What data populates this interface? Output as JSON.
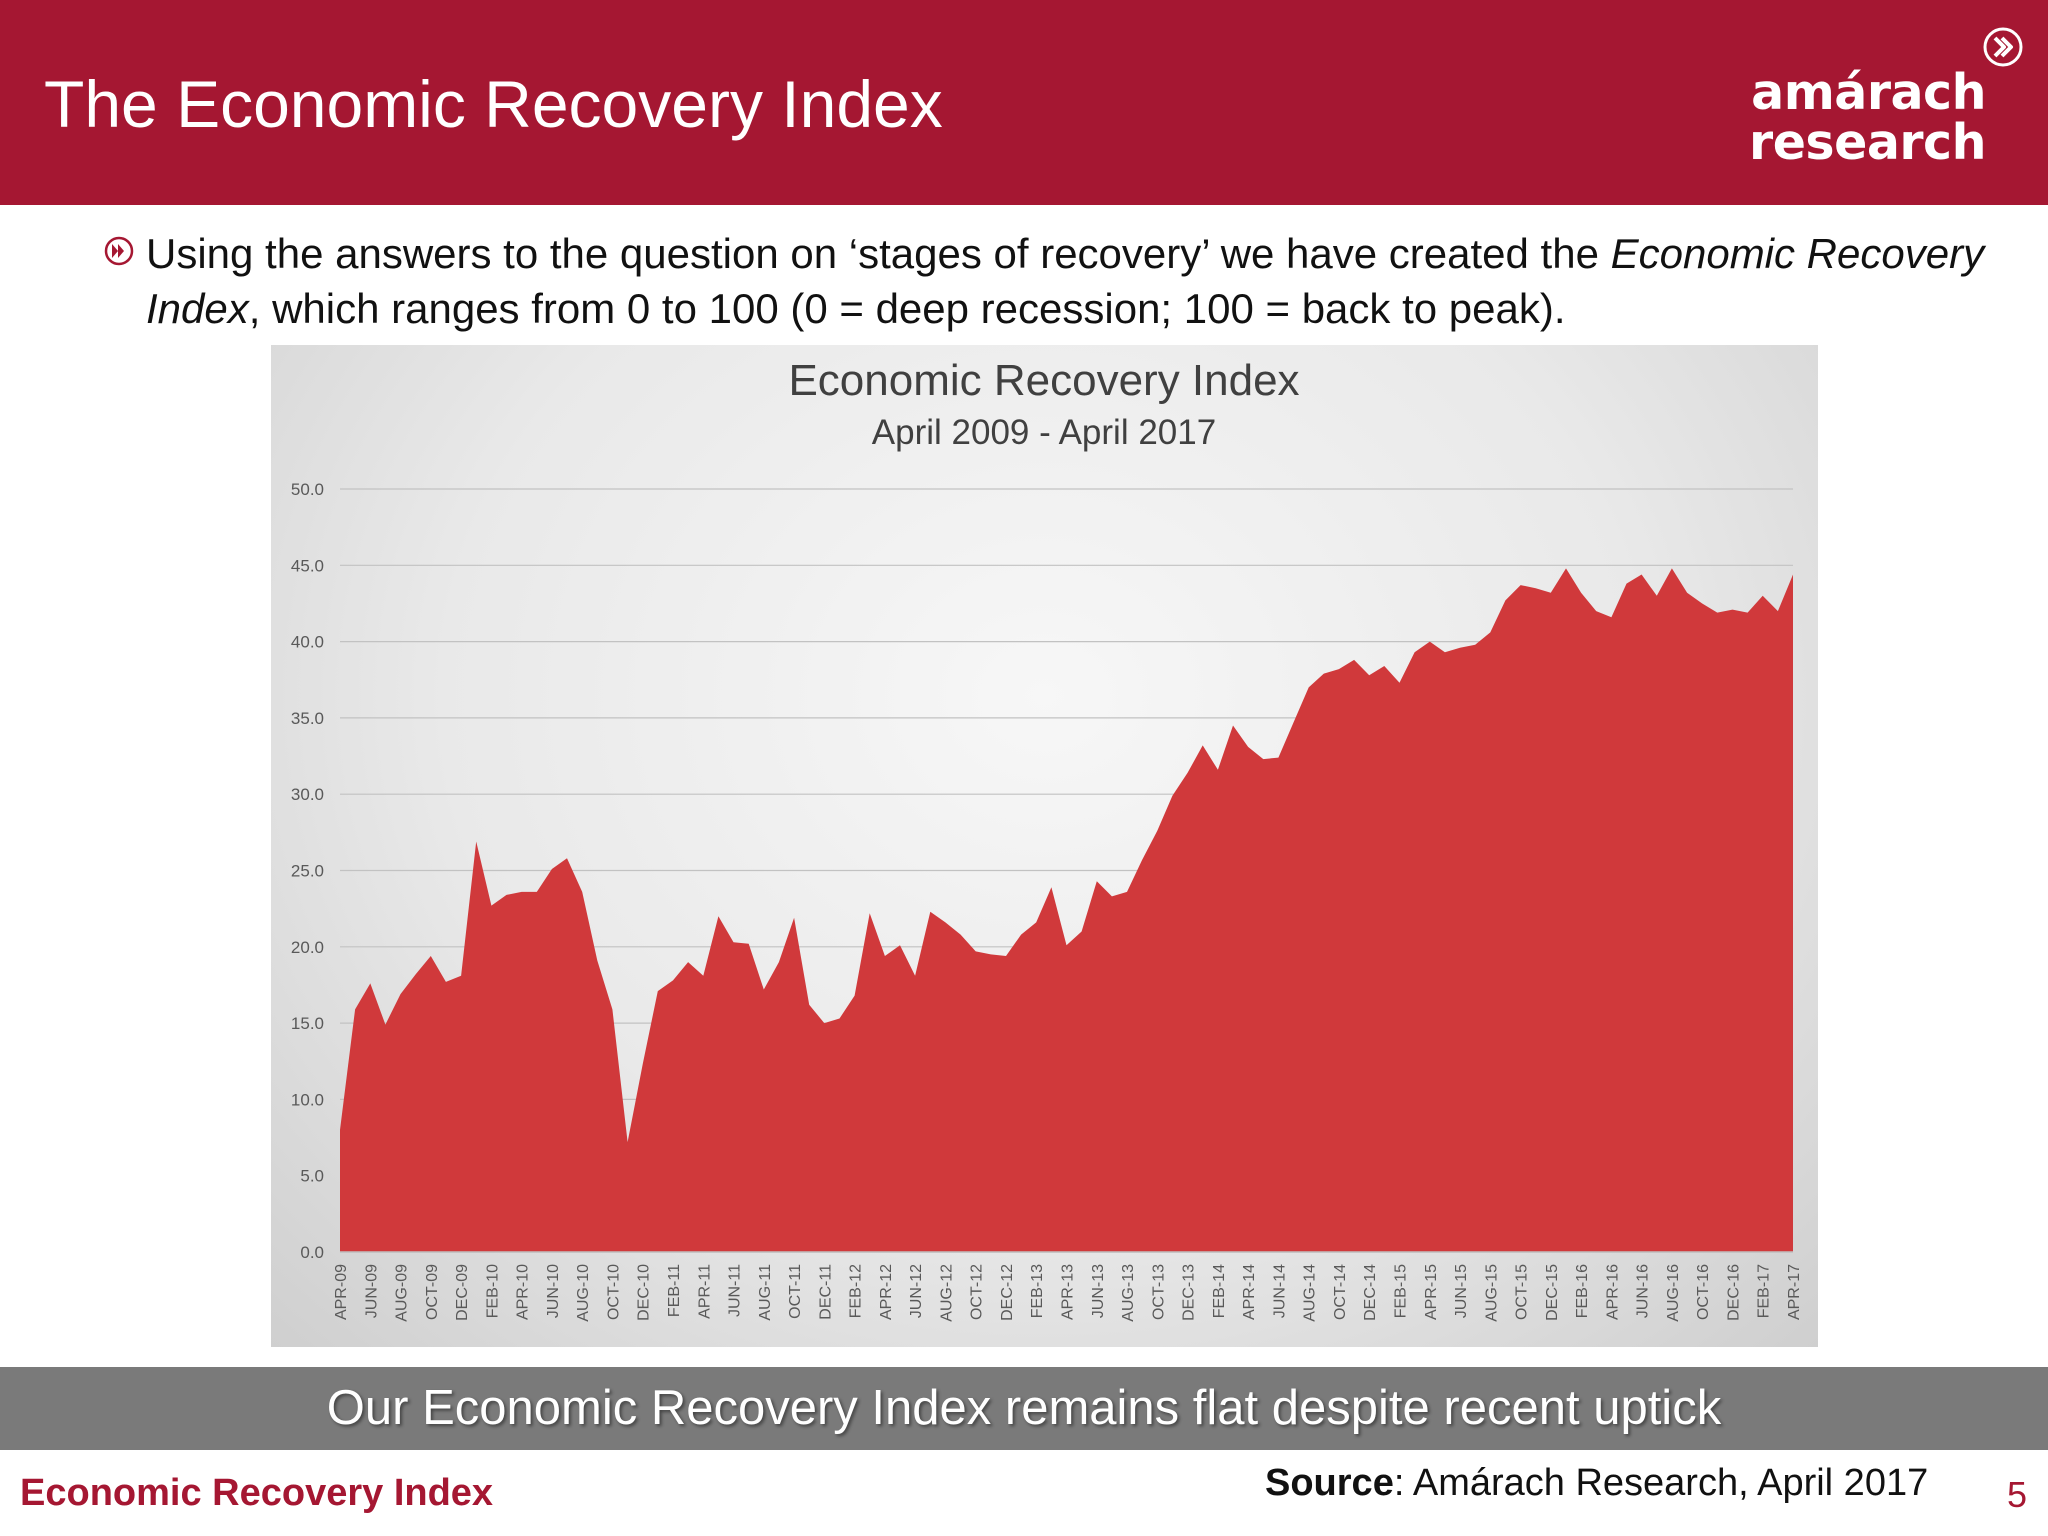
{
  "slide": {
    "title": "The Economic Recovery Index",
    "logo_line1": "amárach",
    "logo_line2": "research",
    "bullet_part1": "Using the answers to the question on ‘stages of recovery’ we have created the ",
    "bullet_italic": "Economic Recovery Index",
    "bullet_part2": ", which ranges from 0 to 100 (0 = deep recession; 100 = back to peak).",
    "banner": "Our Economic Recovery Index remains flat despite recent uptick",
    "footer_left": "Economic Recovery Index",
    "source_label": "Source",
    "source_text": ": Amárach Research, April 2017",
    "page_number": "5"
  },
  "colors": {
    "brand": "#a51732",
    "area_fill": "#d0393b",
    "banner": "#7a7a7a"
  },
  "chart_data": {
    "type": "area",
    "title": "Economic Recovery Index",
    "subtitle": "April 2009 - April 2017",
    "xlabel": "",
    "ylabel": "",
    "ylim": [
      0,
      50
    ],
    "yticks": [
      "0.0",
      "5.0",
      "10.0",
      "15.0",
      "20.0",
      "25.0",
      "30.0",
      "35.0",
      "40.0",
      "45.0",
      "50.0"
    ],
    "grid": true,
    "legend": "none",
    "x_tick_labels": [
      "APR-09",
      "JUN-09",
      "AUG-09",
      "OCT-09",
      "DEC-09",
      "FEB-10",
      "APR-10",
      "JUN-10",
      "AUG-10",
      "OCT-10",
      "DEC-10",
      "FEB-11",
      "APR-11",
      "JUN-11",
      "AUG-11",
      "OCT-11",
      "DEC-11",
      "FEB-12",
      "APR-12",
      "JUN-12",
      "AUG-12",
      "OCT-12",
      "DEC-12",
      "FEB-13",
      "APR-13",
      "JUN-13",
      "AUG-13",
      "OCT-13",
      "DEC-13",
      "FEB-14",
      "APR-14",
      "JUN-14",
      "AUG-14",
      "OCT-14",
      "DEC-14",
      "FEB-15",
      "APR-15",
      "JUN-15",
      "AUG-15",
      "OCT-15",
      "DEC-15",
      "FEB-16",
      "APR-16",
      "JUN-16",
      "AUG-16",
      "OCT-16",
      "DEC-16",
      "FEB-17",
      "APR-17"
    ],
    "values": [
      8,
      15.9,
      17.6,
      14.9,
      16.9,
      18.2,
      19.4,
      17.7,
      18.1,
      26.9,
      22.7,
      23.4,
      23.6,
      23.6,
      25.1,
      25.8,
      23.6,
      19.1,
      15.9,
      7.2,
      12.3,
      17.1,
      17.8,
      19,
      18.1,
      22,
      20.3,
      20.2,
      17.2,
      19,
      21.9,
      16.2,
      15,
      15.3,
      16.8,
      22.2,
      19.4,
      20.1,
      18.1,
      22.3,
      21.6,
      20.8,
      19.7,
      19.5,
      19.4,
      20.8,
      21.6,
      23.9,
      20.1,
      21,
      24.3,
      23.3,
      23.6,
      25.7,
      27.6,
      29.9,
      31.4,
      33.2,
      31.6,
      34.5,
      33.1,
      32.3,
      32.4,
      34.7,
      37,
      37.9,
      38.2,
      38.8,
      37.8,
      38.4,
      37.3,
      39.3,
      40,
      39.3,
      39.6,
      39.8,
      40.6,
      42.7,
      43.7,
      43.5,
      43.2,
      44.8,
      43.2,
      42,
      41.6,
      43.8,
      44.4,
      43,
      44.8,
      43.2,
      42.5,
      41.9,
      42.1,
      41.9,
      43,
      42,
      44.4
    ]
  }
}
